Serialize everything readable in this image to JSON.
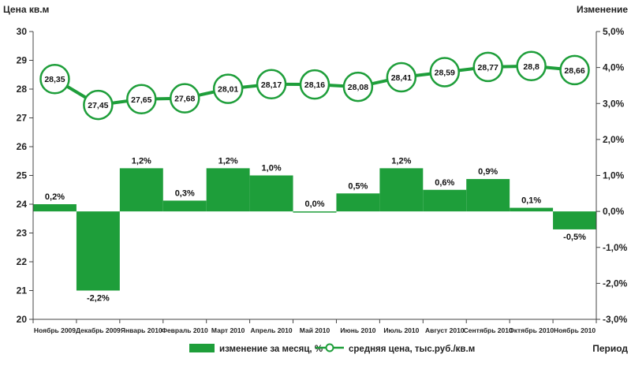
{
  "colors": {
    "bar": "#1e9e3a",
    "line": "#1e9e3a",
    "marker_fill": "#ffffff",
    "axis": "#444444"
  },
  "chart_data": {
    "type": "bar",
    "categories": [
      "Ноябрь 2009",
      "Декабрь 2009",
      "Январь 2010",
      "Февраль 2010",
      "Март 2010",
      "Апрель 2010",
      "Май 2010",
      "Июнь 2010",
      "Июль 2010",
      "Август 2010",
      "Сентябрь 2010",
      "Октябрь 2010",
      "Ноябрь 2010"
    ],
    "y_left_label": "Цена кв.м",
    "y_right_label": "Изменение",
    "x_label": "Период",
    "y_left_range": [
      20,
      30
    ],
    "y_right_range": [
      -3.0,
      5.0
    ],
    "y_left_ticks": [
      "20",
      "21",
      "22",
      "23",
      "24",
      "25",
      "26",
      "27",
      "28",
      "29",
      "30"
    ],
    "y_right_ticks": [
      "-3,0%",
      "-2,0%",
      "-1,0%",
      "0,0%",
      "1,0%",
      "2,0%",
      "3,0%",
      "4,0%",
      "5,0%"
    ],
    "grid": false,
    "legend_position": "bottom",
    "series": [
      {
        "name": "изменение за месяц, %",
        "type": "bar",
        "axis": "right",
        "values": [
          0.2,
          -2.2,
          1.2,
          0.3,
          1.2,
          1.0,
          0.0,
          0.5,
          1.2,
          0.6,
          0.9,
          0.1,
          -0.5
        ],
        "labels": [
          "0,2%",
          "-2,2%",
          "1,2%",
          "0,3%",
          "1,2%",
          "1,0%",
          "0,0%",
          "0,5%",
          "1,2%",
          "0,6%",
          "0,9%",
          "0,1%",
          "-0,5%"
        ]
      },
      {
        "name": "средняя цена, тыс.руб./кв.м",
        "type": "line",
        "axis": "left",
        "values": [
          28.35,
          27.45,
          27.65,
          27.68,
          28.01,
          28.17,
          28.16,
          28.08,
          28.41,
          28.59,
          28.77,
          28.8,
          28.66
        ],
        "labels": [
          "28,35",
          "27,45",
          "27,65",
          "27,68",
          "28,01",
          "28,17",
          "28,16",
          "28,08",
          "28,41",
          "28,59",
          "28,77",
          "28,8",
          "28,66"
        ]
      }
    ]
  }
}
